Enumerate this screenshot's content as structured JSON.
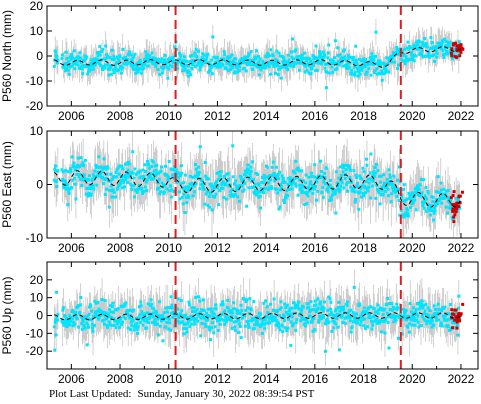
{
  "figure": {
    "footer_label": "Plot Last Updated:",
    "footer_value": "Sunday, January 30, 2022 08:39:54 PST"
  },
  "colors": {
    "main_points": "#00e5ff",
    "error_bars": "#b4b4b4",
    "recent_points": "#d00000",
    "trend_line": "#000000",
    "offset_lines": "#e41a1c",
    "frame": "#000000"
  },
  "chart_data": [
    {
      "type": "scatter",
      "station": "P560",
      "component": "North",
      "title": "",
      "xlabel": "",
      "ylabel": "P560 North (mm)",
      "xlim": [
        2005.0,
        2022.7
      ],
      "ylim": [
        -20,
        20
      ],
      "x_ticks": [
        2006,
        2008,
        2010,
        2012,
        2014,
        2016,
        2018,
        2020,
        2022
      ],
      "y_ticks": [
        -20,
        -10,
        0,
        10,
        20
      ],
      "offset_dates": [
        2010.28,
        2019.53
      ],
      "series": [
        {
          "role": "daily solution",
          "x_range": [
            2005.3,
            2021.95
          ],
          "error_bar_mm": 4
        },
        {
          "role": "most recent solutions",
          "x_range": [
            2021.6,
            2022.08
          ]
        },
        {
          "role": "model fit",
          "x": [
            2005.3,
            2006.0,
            2007.0,
            2008.0,
            2009.0,
            2010.0,
            2011.0,
            2012.0,
            2013.0,
            2014.0,
            2015.0,
            2016.0,
            2017.0,
            2018.0,
            2019.0,
            2019.53,
            2020.0,
            2021.0,
            2022.0
          ],
          "y": [
            -2.5,
            -2.8,
            -2.5,
            -2.8,
            -2.4,
            -2.6,
            -2.4,
            -2.5,
            -2.6,
            -2.7,
            -2.6,
            -2.4,
            -2.7,
            -3.1,
            -3.6,
            1.8,
            2.3,
            2.7,
            3.0
          ]
        }
      ],
      "seasonal_amplitude_mm": 1.0
    },
    {
      "type": "scatter",
      "station": "P560",
      "component": "East",
      "title": "",
      "xlabel": "",
      "ylabel": "P560 East (mm)",
      "xlim": [
        2005.0,
        2022.7
      ],
      "ylim": [
        -10,
        10
      ],
      "x_ticks": [
        2006,
        2008,
        2010,
        2012,
        2014,
        2016,
        2018,
        2020,
        2022
      ],
      "y_ticks": [
        -10,
        0,
        10
      ],
      "offset_dates": [
        2010.28,
        2019.53
      ],
      "series": [
        {
          "role": "daily solution",
          "x_range": [
            2005.3,
            2021.95
          ],
          "error_bar_mm": 3
        },
        {
          "role": "most recent solutions",
          "x_range": [
            2021.6,
            2022.08
          ]
        },
        {
          "role": "model fit",
          "x": [
            2005.3,
            2006.0,
            2007.0,
            2008.0,
            2009.0,
            2010.0,
            2010.28,
            2011.0,
            2012.0,
            2013.0,
            2014.0,
            2015.0,
            2016.0,
            2017.0,
            2018.0,
            2019.0,
            2019.53,
            2020.0,
            2021.0,
            2022.0
          ],
          "y": [
            1.0,
            1.3,
            1.2,
            1.1,
            0.9,
            0.8,
            -0.3,
            -0.2,
            -0.1,
            0.0,
            0.2,
            0.2,
            0.3,
            0.5,
            0.5,
            0.4,
            -2.5,
            -2.7,
            -3.0,
            -2.8
          ]
        }
      ],
      "seasonal_amplitude_mm": 1.3
    },
    {
      "type": "scatter",
      "station": "P560",
      "component": "Up",
      "title": "",
      "xlabel": "",
      "ylabel": "P560 Up (mm)",
      "xlim": [
        2005.0,
        2022.7
      ],
      "ylim": [
        -30,
        30
      ],
      "x_ticks": [
        2006,
        2008,
        2010,
        2012,
        2014,
        2016,
        2018,
        2020,
        2022
      ],
      "y_ticks": [
        -20,
        -10,
        0,
        10,
        20
      ],
      "offset_dates": [
        2010.28,
        2019.53
      ],
      "series": [
        {
          "role": "daily solution",
          "x_range": [
            2005.3,
            2021.95
          ],
          "error_bar_mm": 8
        },
        {
          "role": "most recent solutions",
          "x_range": [
            2021.6,
            2022.08
          ]
        },
        {
          "role": "model fit",
          "x": [
            2005.3,
            2006.0,
            2008.0,
            2010.0,
            2012.0,
            2014.0,
            2016.0,
            2018.0,
            2020.0,
            2022.0
          ],
          "y": [
            -1.0,
            -1.0,
            -0.8,
            -0.6,
            -0.4,
            -0.3,
            0.0,
            0.0,
            0.0,
            0.0
          ]
        }
      ],
      "seasonal_amplitude_mm": 1.5
    }
  ]
}
